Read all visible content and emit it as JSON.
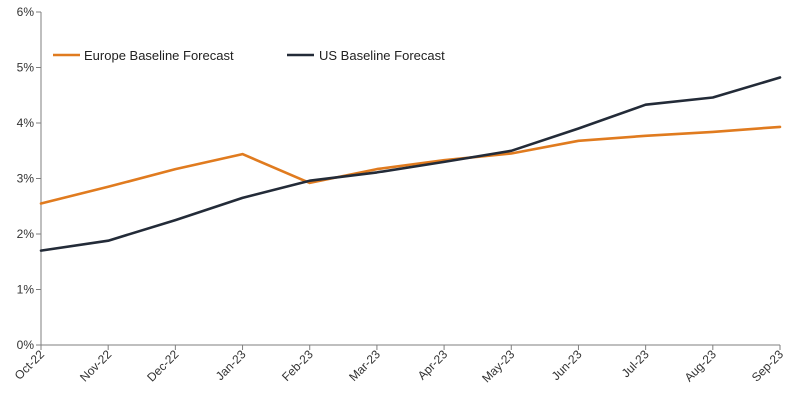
{
  "chart_data": {
    "type": "line",
    "categories": [
      "Oct-22",
      "Nov-22",
      "Dec-22",
      "Jan-23",
      "Feb-23",
      "Mar-23",
      "Apr-23",
      "May-23",
      "Jun-23",
      "Jul-23",
      "Aug-23",
      "Sep-23"
    ],
    "series": [
      {
        "name": "Europe Baseline Forecast",
        "color": "#E07B1F",
        "values": [
          2.55,
          2.85,
          3.17,
          3.44,
          2.92,
          3.17,
          3.33,
          3.45,
          3.68,
          3.77,
          3.84,
          3.93
        ]
      },
      {
        "name": "US Baseline Forecast",
        "color": "#232B38",
        "values": [
          1.7,
          1.88,
          2.25,
          2.65,
          2.96,
          3.11,
          3.3,
          3.5,
          3.9,
          4.33,
          4.46,
          4.82
        ]
      }
    ],
    "yticks": [
      "0%",
      "1%",
      "2%",
      "3%",
      "4%",
      "5%",
      "6%"
    ],
    "ylim": [
      0,
      6
    ],
    "ylabel": "",
    "xlabel": "",
    "title": "",
    "grid": false,
    "legend_position": "top-left"
  },
  "colors": {
    "axis": "#7F7F7F",
    "text": "#333333"
  }
}
